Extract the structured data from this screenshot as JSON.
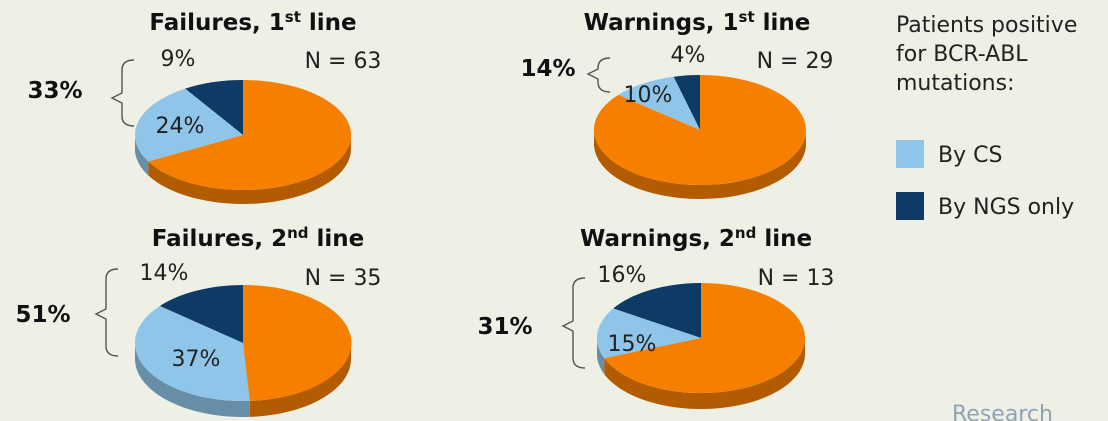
{
  "chart_data": [
    {
      "type": "pie",
      "title": "Failures, 1st line",
      "n_label": "N = 63",
      "total_label": "33%",
      "slices": [
        {
          "name": "By NGS only",
          "value": 9,
          "label": "9%",
          "color": "#0d3b66"
        },
        {
          "name": "By CS",
          "value": 24,
          "label": "24%",
          "color": "#8ec5e8"
        },
        {
          "name": "other",
          "value": 67,
          "label": "",
          "color": "#f77f00"
        }
      ]
    },
    {
      "type": "pie",
      "title": "Warnings, 1st line",
      "n_label": "N = 29",
      "total_label": "14%",
      "slices": [
        {
          "name": "By NGS only",
          "value": 4,
          "label": "4%",
          "color": "#0d3b66"
        },
        {
          "name": "By CS",
          "value": 10,
          "label": "10%",
          "color": "#8ec5e8"
        },
        {
          "name": "other",
          "value": 86,
          "label": "",
          "color": "#f77f00"
        }
      ]
    },
    {
      "type": "pie",
      "title": "Failures, 2nd line",
      "n_label": "N = 35",
      "total_label": "51%",
      "slices": [
        {
          "name": "By NGS only",
          "value": 14,
          "label": "14%",
          "color": "#0d3b66"
        },
        {
          "name": "By CS",
          "value": 37,
          "label": "37%",
          "color": "#8ec5e8"
        },
        {
          "name": "other",
          "value": 49,
          "label": "",
          "color": "#f77f00"
        }
      ]
    },
    {
      "type": "pie",
      "title": "Warnings, 2nd line",
      "n_label": "N = 13",
      "total_label": "31%",
      "slices": [
        {
          "name": "By NGS only",
          "value": 16,
          "label": "16%",
          "color": "#0d3b66"
        },
        {
          "name": "By CS",
          "value": 15,
          "label": "15%",
          "color": "#8ec5e8"
        },
        {
          "name": "other",
          "value": 69,
          "label": "",
          "color": "#f77f00"
        }
      ]
    }
  ],
  "legend": {
    "heading": [
      "Patients positive",
      "for BCR-ABL",
      "mutations:"
    ],
    "items": [
      {
        "label": "By CS",
        "color": "#8ec5e8"
      },
      {
        "label": "By NGS only",
        "color": "#0d3b66"
      }
    ]
  },
  "footer_text": "Research"
}
